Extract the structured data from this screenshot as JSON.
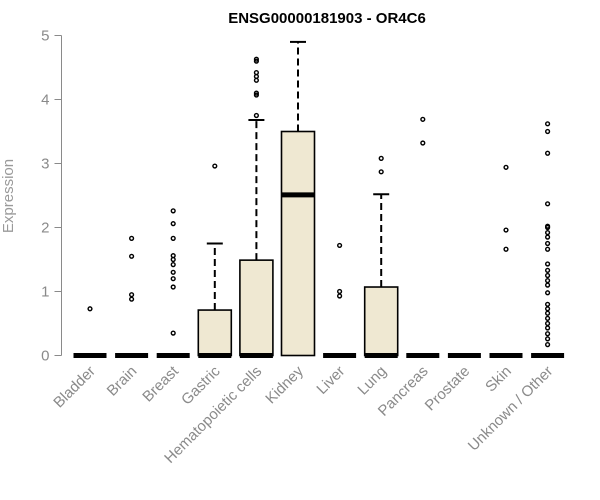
{
  "chart_data": {
    "type": "boxplot",
    "title": "ENSG00000181903 - OR4C6",
    "xlabel": "",
    "ylabel": "Expression",
    "ylim": [
      0,
      5
    ],
    "yticks": [
      0,
      1,
      2,
      3,
      4,
      5
    ],
    "grid": false,
    "colors": {
      "box_fill": "#efe8d2",
      "box_stroke": "#000000",
      "axis": "#8a8a8a"
    },
    "categories": [
      "Bladder",
      "Brain",
      "Breast",
      "Gastric",
      "Hematopoietic cells",
      "Kidney",
      "Liver",
      "Lung",
      "Pancreas",
      "Prostate",
      "Skin",
      "Unknown / Other"
    ],
    "boxes": [
      {
        "category": "Bladder",
        "min": 0,
        "q1": 0,
        "median": 0,
        "q3": 0,
        "max": 0,
        "outliers": [
          0.73
        ]
      },
      {
        "category": "Brain",
        "min": 0,
        "q1": 0,
        "median": 0,
        "q3": 0,
        "max": 0,
        "outliers": [
          0.88,
          0.95,
          1.55,
          1.83
        ]
      },
      {
        "category": "Breast",
        "min": 0,
        "q1": 0,
        "median": 0,
        "q3": 0,
        "max": 0,
        "outliers": [
          0.35,
          1.07,
          1.2,
          1.3,
          1.42,
          1.5,
          1.56,
          1.83,
          2.06,
          2.26
        ]
      },
      {
        "category": "Gastric",
        "min": 0,
        "q1": 0,
        "median": 0,
        "q3": 0.71,
        "max": 1.75,
        "outliers": [
          2.96
        ]
      },
      {
        "category": "Hematopoietic cells",
        "min": 0,
        "q1": 0,
        "median": 0,
        "q3": 1.49,
        "max": 3.68,
        "outliers": [
          3.75,
          4.07,
          4.1,
          4.3,
          4.36,
          4.42,
          4.6,
          4.63
        ]
      },
      {
        "category": "Kidney",
        "min": 0,
        "q1": 0,
        "median": 2.51,
        "q3": 3.5,
        "max": 4.9,
        "outliers": []
      },
      {
        "category": "Liver",
        "min": 0,
        "q1": 0,
        "median": 0,
        "q3": 0,
        "max": 0,
        "outliers": [
          0.93,
          1.0,
          1.72
        ]
      },
      {
        "category": "Lung",
        "min": 0,
        "q1": 0,
        "median": 0,
        "q3": 1.07,
        "max": 2.52,
        "outliers": [
          2.87,
          3.08
        ]
      },
      {
        "category": "Pancreas",
        "min": 0,
        "q1": 0,
        "median": 0,
        "q3": 0,
        "max": 0,
        "outliers": [
          3.32,
          3.69
        ]
      },
      {
        "category": "Prostate",
        "min": 0,
        "q1": 0,
        "median": 0,
        "q3": 0,
        "max": 0,
        "outliers": []
      },
      {
        "category": "Skin",
        "min": 0,
        "q1": 0,
        "median": 0,
        "q3": 0,
        "max": 0,
        "outliers": [
          1.66,
          1.96,
          2.94
        ]
      },
      {
        "category": "Unknown / Other",
        "min": 0,
        "q1": 0,
        "median": 0,
        "q3": 0,
        "max": 0,
        "outliers": [
          0.17,
          0.26,
          0.34,
          0.43,
          0.5,
          0.58,
          0.66,
          0.73,
          0.8,
          0.98,
          1.1,
          1.17,
          1.25,
          1.33,
          1.43,
          1.66,
          1.75,
          1.85,
          1.92,
          2.0,
          2.02,
          2.37,
          3.16,
          3.5,
          3.62
        ]
      }
    ]
  }
}
